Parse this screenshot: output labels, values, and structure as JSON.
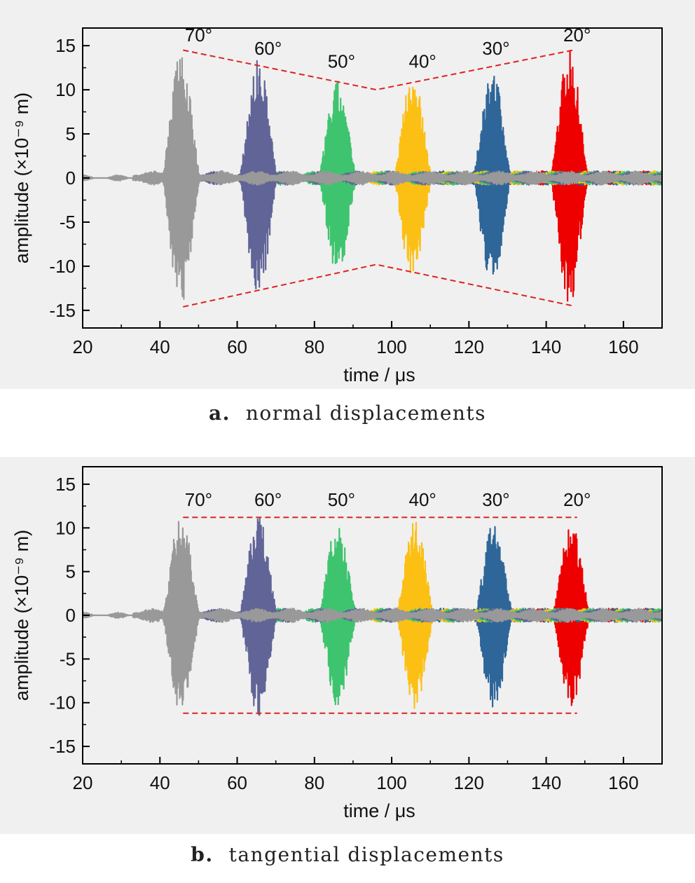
{
  "chart_data": [
    {
      "type": "line",
      "panel": "a.",
      "caption": "normal displacements",
      "xlabel": "time / μs",
      "ylabel": "amplitude (×10⁻⁹ m)",
      "xlim": [
        20,
        170
      ],
      "ylim": [
        -17,
        17
      ],
      "xticks": [
        "20",
        "40",
        "60",
        "80",
        "100",
        "120",
        "140",
        "160"
      ],
      "yticks": [
        "15",
        "10",
        "5",
        "0",
        "-5",
        "-10",
        "-15"
      ],
      "series": [
        {
          "name": "70°",
          "color": "#999999",
          "center": 45.5,
          "amplitude": 14.5
        },
        {
          "name": "60°",
          "color": "#616497",
          "center": 65.5,
          "amplitude": 13.5
        },
        {
          "name": "50°",
          "color": "#3ec46e",
          "center": 86.0,
          "amplitude": 11.0
        },
        {
          "name": "40°",
          "color": "#fcc014",
          "center": 105.5,
          "amplitude": 12.0
        },
        {
          "name": "30°",
          "color": "#2f6699",
          "center": 126.0,
          "amplitude": 12.5
        },
        {
          "name": "20°",
          "color": "#ee0000",
          "center": 146.0,
          "amplitude": 14.5
        }
      ],
      "envelope": {
        "color": "#dd2222",
        "upper": [
          [
            46,
            14.5
          ],
          [
            96,
            10.0
          ],
          [
            147,
            14.5
          ]
        ],
        "lower": [
          [
            46,
            -14.6
          ],
          [
            96,
            -9.8
          ],
          [
            147,
            -14.5
          ]
        ]
      },
      "angle_labels": [
        {
          "text": "70°",
          "x": 50,
          "y": 15.5
        },
        {
          "text": "60°",
          "x": 68,
          "y": 14.0
        },
        {
          "text": "50°",
          "x": 87,
          "y": 12.5
        },
        {
          "text": "40°",
          "x": 108,
          "y": 12.5
        },
        {
          "text": "30°",
          "x": 127,
          "y": 14.0
        },
        {
          "text": "20°",
          "x": 148,
          "y": 15.5
        }
      ]
    },
    {
      "type": "line",
      "panel": "b.",
      "caption": "tangential displacements",
      "xlabel": "time / μs",
      "ylabel": "amplitude (×10⁻⁹ m)",
      "xlim": [
        20,
        170
      ],
      "ylim": [
        -17,
        17
      ],
      "xticks": [
        "20",
        "40",
        "60",
        "80",
        "100",
        "120",
        "140",
        "160"
      ],
      "yticks": [
        "15",
        "10",
        "5",
        "0",
        "-5",
        "-10",
        "-15"
      ],
      "series": [
        {
          "name": "70°",
          "color": "#999999",
          "center": 45.5,
          "amplitude": 11.5
        },
        {
          "name": "60°",
          "color": "#616497",
          "center": 65.5,
          "amplitude": 11.5
        },
        {
          "name": "50°",
          "color": "#3ec46e",
          "center": 86.0,
          "amplitude": 10.5
        },
        {
          "name": "40°",
          "color": "#fcc014",
          "center": 106.0,
          "amplitude": 11.0
        },
        {
          "name": "30°",
          "color": "#2f6699",
          "center": 126.5,
          "amplitude": 11.0
        },
        {
          "name": "20°",
          "color": "#ee0000",
          "center": 146.5,
          "amplitude": 10.5
        }
      ],
      "envelope": {
        "color": "#dd2222",
        "upper": [
          [
            46,
            11.2
          ],
          [
            148,
            11.2
          ]
        ],
        "lower": [
          [
            46,
            -11.2
          ],
          [
            148,
            -11.2
          ]
        ]
      },
      "angle_labels": [
        {
          "text": "70°",
          "x": 50,
          "y": 12.5
        },
        {
          "text": "60°",
          "x": 68,
          "y": 12.5
        },
        {
          "text": "50°",
          "x": 87,
          "y": 12.5
        },
        {
          "text": "40°",
          "x": 108,
          "y": 12.5
        },
        {
          "text": "30°",
          "x": 127,
          "y": 12.5
        },
        {
          "text": "20°",
          "x": 148,
          "y": 12.5
        }
      ]
    }
  ]
}
